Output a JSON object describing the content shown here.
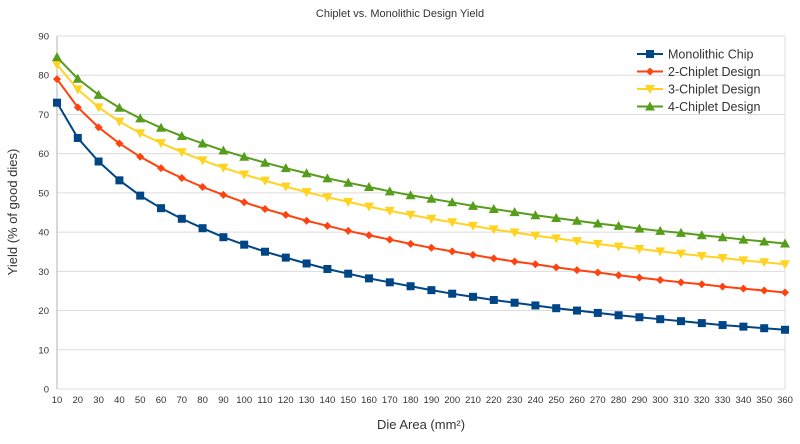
{
  "chart_data": {
    "type": "line",
    "title": "Chiplet vs. Monolithic Design Yield",
    "xlabel": "Die Area (mm²)",
    "ylabel": "Yield (% of good dies)",
    "ylim": [
      0,
      90
    ],
    "yticks": [
      0,
      10,
      20,
      30,
      40,
      50,
      60,
      70,
      80,
      90
    ],
    "grid": true,
    "legend_position": "top-right",
    "x": [
      10,
      20,
      30,
      40,
      50,
      60,
      70,
      80,
      90,
      100,
      110,
      120,
      130,
      140,
      150,
      160,
      170,
      180,
      190,
      200,
      210,
      220,
      230,
      240,
      250,
      260,
      270,
      280,
      290,
      300,
      310,
      320,
      330,
      340,
      350,
      360
    ],
    "series": [
      {
        "name": "Monolithic Chip",
        "color": "#004586",
        "marker": "square",
        "values": [
          73,
          64,
          58,
          53.2,
          49.3,
          46.1,
          43.4,
          41,
          38.7,
          36.8,
          35,
          33.5,
          32,
          30.6,
          29.4,
          28.2,
          27.2,
          26.2,
          25.2,
          24.3,
          23.5,
          22.7,
          22,
          21.3,
          20.6,
          20,
          19.4,
          18.8,
          18.3,
          17.8,
          17.3,
          16.8,
          16.3,
          15.9,
          15.5,
          15.1
        ]
      },
      {
        "name": "2-Chiplet Design",
        "color": "#ff420e",
        "marker": "diamond",
        "values": [
          79,
          71.8,
          66.7,
          62.6,
          59.2,
          56.3,
          53.8,
          51.5,
          49.5,
          47.6,
          45.9,
          44.4,
          42.9,
          41.6,
          40.3,
          39.2,
          38.1,
          37,
          36,
          35.1,
          34.2,
          33.3,
          32.5,
          31.8,
          31,
          30.3,
          29.7,
          29,
          28.4,
          27.8,
          27.2,
          26.7,
          26.1,
          25.6,
          25.1,
          24.6
        ]
      },
      {
        "name": "3-Chiplet Design",
        "color": "#ffd320",
        "marker": "triangle-down",
        "values": [
          82.7,
          76.4,
          71.8,
          68.2,
          65.2,
          62.7,
          60.4,
          58.3,
          56.4,
          54.7,
          53.1,
          51.6,
          50.2,
          48.9,
          47.7,
          46.5,
          45.4,
          44.4,
          43.4,
          42.5,
          41.6,
          40.7,
          39.9,
          39.1,
          38.4,
          37.7,
          37,
          36.3,
          35.7,
          35.1,
          34.5,
          33.9,
          33.4,
          32.8,
          32.3,
          31.8
        ]
      },
      {
        "name": "4-Chiplet Design",
        "color": "#579d1c",
        "marker": "triangle-up",
        "values": [
          84.6,
          79.1,
          75,
          71.7,
          69,
          66.6,
          64.5,
          62.6,
          60.8,
          59.2,
          57.7,
          56.3,
          55,
          53.7,
          52.6,
          51.5,
          50.4,
          49.4,
          48.5,
          47.6,
          46.7,
          45.9,
          45.1,
          44.3,
          43.6,
          42.9,
          42.2,
          41.6,
          40.9,
          40.3,
          39.8,
          39.2,
          38.7,
          38.1,
          37.6,
          37.1
        ]
      }
    ]
  }
}
